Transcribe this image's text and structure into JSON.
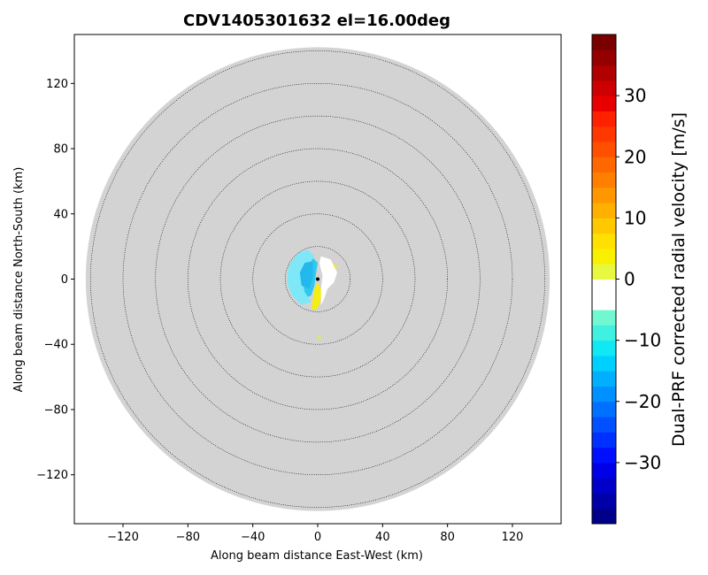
{
  "chart_data": {
    "type": "heatmap",
    "title": "CDV1405301632 el=16.00deg",
    "xlabel": "Along beam distance East-West (km)",
    "ylabel": "Along beam distance North-South (km)",
    "xlim": [
      -150,
      150
    ],
    "ylim": [
      -150,
      150
    ],
    "xticks": [
      -120,
      -80,
      -40,
      0,
      40,
      80,
      120
    ],
    "yticks": [
      -120,
      -80,
      -40,
      0,
      40,
      80,
      120
    ],
    "range_rings_km": [
      20,
      40,
      60,
      80,
      100,
      120,
      140
    ],
    "max_range_km": 143,
    "grid": false,
    "colorbar": {
      "label": "Dual-PRF corrected radial velocity [m/s]",
      "vmin": -40,
      "vmax": 40,
      "ticks": [
        -30,
        -20,
        -10,
        0,
        10,
        20,
        30
      ],
      "colors": [
        "#00008a",
        "#0000a8",
        "#0000c8",
        "#0000e6",
        "#0010ff",
        "#0030ff",
        "#0050ff",
        "#0070ff",
        "#0090ff",
        "#00b0ff",
        "#00d0ff",
        "#10e8f4",
        "#40f0e0",
        "#70f8d0",
        "#ffffff",
        "#ffffff",
        "#e8f840",
        "#f8f000",
        "#ffe000",
        "#ffc800",
        "#ffb000",
        "#ff9800",
        "#ff8000",
        "#ff6800",
        "#ff5000",
        "#ff3800",
        "#ff2000",
        "#e80000",
        "#cc0000",
        "#b00000",
        "#940000",
        "#7a0000"
      ]
    },
    "velocity_regions": [
      {
        "value_ms": -12,
        "color": "#2ec8f0",
        "points_km": [
          [
            -10,
            12
          ],
          [
            -4,
            14
          ],
          [
            0,
            10
          ],
          [
            -1,
            4
          ],
          [
            -2,
            -4
          ],
          [
            -4,
            -10
          ],
          [
            -8,
            -12
          ],
          [
            -12,
            -8
          ],
          [
            -14,
            -2
          ],
          [
            -14,
            6
          ]
        ]
      },
      {
        "value_ms": -9,
        "color": "#7ee8f8",
        "points_km": [
          [
            -18,
            8
          ],
          [
            -12,
            16
          ],
          [
            -6,
            18
          ],
          [
            -2,
            14
          ],
          [
            -6,
            8
          ],
          [
            -10,
            2
          ],
          [
            -8,
            -8
          ],
          [
            -4,
            -14
          ],
          [
            -10,
            -16
          ],
          [
            -16,
            -10
          ],
          [
            -19,
            -2
          ]
        ]
      },
      {
        "value_ms": -14,
        "color": "#22b8ec",
        "points_km": [
          [
            -8,
            10
          ],
          [
            -3,
            11
          ],
          [
            -3,
            2
          ],
          [
            -5,
            -6
          ],
          [
            -10,
            -4
          ],
          [
            -11,
            4
          ]
        ]
      },
      {
        "value_ms": 4,
        "color": "#f6ee10",
        "points_km": [
          [
            0,
            -2
          ],
          [
            2,
            -6
          ],
          [
            2,
            -12
          ],
          [
            0,
            -18
          ],
          [
            -4,
            -19
          ],
          [
            -3,
            -12
          ],
          [
            -2,
            -6
          ]
        ]
      },
      {
        "value_ms": 6,
        "color": "#ffe800",
        "points_km": [
          [
            3,
            8
          ],
          [
            8,
            10
          ],
          [
            12,
            8
          ],
          [
            10,
            4
          ],
          [
            5,
            4
          ],
          [
            2,
            6
          ]
        ]
      },
      {
        "value_ms": 3,
        "color": "#f0f020",
        "points_km": [
          [
            1,
            -34
          ],
          [
            2,
            -36
          ],
          [
            1,
            -37
          ],
          [
            0,
            -36
          ]
        ]
      },
      {
        "value_ms": 0,
        "color": "#ffffff",
        "points_km": [
          [
            2,
            14
          ],
          [
            8,
            12
          ],
          [
            12,
            4
          ],
          [
            10,
            -2
          ],
          [
            6,
            -6
          ],
          [
            4,
            -12
          ],
          [
            2,
            -16
          ],
          [
            2,
            -6
          ],
          [
            3,
            2
          ],
          [
            1,
            10
          ]
        ]
      }
    ]
  }
}
